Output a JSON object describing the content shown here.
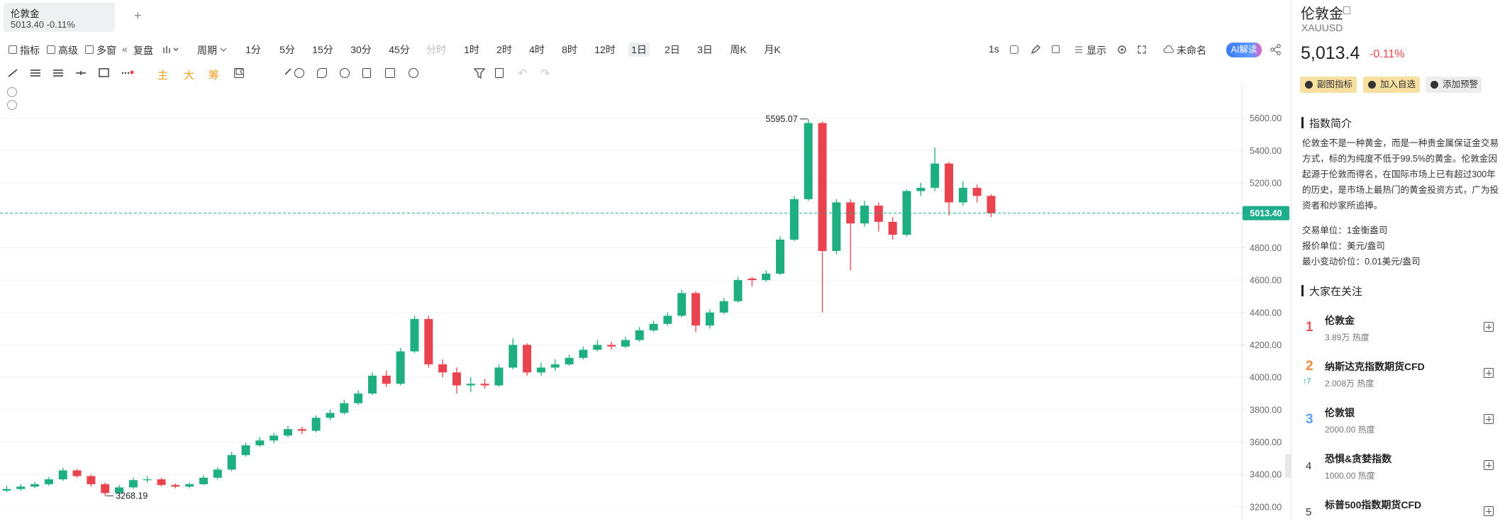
{
  "tab": {
    "title": "伦敦金",
    "price": "5013.40",
    "change": "-0.11%"
  },
  "toolbar": {
    "indicator": "指标",
    "advanced": "高级",
    "multi": "多窗",
    "replay": "复盘",
    "period": "周期",
    "periods": [
      "1分",
      "5分",
      "15分",
      "30分",
      "45分",
      "分时",
      "1时",
      "2时",
      "4时",
      "8时",
      "12时",
      "1日",
      "2日",
      "3日",
      "周K",
      "月K"
    ],
    "interval": "1s",
    "display": "显示",
    "layout": "未命名",
    "ai": "AI解读",
    "drawing": [
      "主",
      "大",
      "筹"
    ]
  },
  "chart_data": {
    "type": "candlestick",
    "up_color": "#1fae7f",
    "down_color": "#e8434f",
    "ylim": [
      3125,
      5800
    ],
    "yticks": [
      {
        "value": 3200,
        "label": "3200.00"
      },
      {
        "value": 3400,
        "label": "3400.00"
      },
      {
        "value": 3600,
        "label": "3600.00"
      },
      {
        "value": 3800,
        "label": "3800.00"
      },
      {
        "value": 4000,
        "label": "4000.00"
      },
      {
        "value": 4200,
        "label": "4200.00"
      },
      {
        "value": 4400,
        "label": "4400.00"
      },
      {
        "value": 4600,
        "label": "4600.00"
      },
      {
        "value": 4800,
        "label": "4800.00"
      },
      {
        "value": 5000,
        "label": "5000.00"
      },
      {
        "value": 5200,
        "label": "5200.00"
      },
      {
        "value": 5400,
        "label": "5400.00"
      },
      {
        "value": 5600,
        "label": "5600.00"
      }
    ],
    "grid": true,
    "open": [
      3300,
      3310,
      3325,
      3340,
      3370,
      3425,
      3390,
      3340,
      3285,
      3320,
      3365,
      3370,
      3335,
      3325,
      3340,
      3380,
      3430,
      3520,
      3580,
      3610,
      3640,
      3680,
      3670,
      3750,
      3780,
      3840,
      3900,
      4010,
      3960,
      4160,
      4360,
      4080,
      4030,
      3950,
      3960,
      3950,
      4060,
      4200,
      4030,
      4060,
      4080,
      4120,
      4170,
      4200,
      4190,
      4230,
      4290,
      4330,
      4380,
      4520,
      4320,
      4400,
      4470,
      4610,
      4600,
      4640,
      4850,
      5100,
      5570,
      4780,
      5080,
      4950,
      5060,
      4960,
      4880,
      5150,
      5170,
      5320,
      5080,
      5170,
      5120
    ],
    "high": [
      3330,
      3340,
      3355,
      3385,
      3440,
      3435,
      3400,
      3350,
      3335,
      3380,
      3390,
      3380,
      3345,
      3350,
      3395,
      3445,
      3540,
      3595,
      3630,
      3655,
      3700,
      3695,
      3765,
      3800,
      3860,
      3920,
      4030,
      4040,
      4180,
      4380,
      4380,
      4110,
      4060,
      4000,
      3990,
      4080,
      4240,
      4210,
      4090,
      4110,
      4140,
      4190,
      4230,
      4220,
      4250,
      4310,
      4350,
      4400,
      4540,
      4530,
      4420,
      4490,
      4620,
      4620,
      4660,
      4870,
      5120,
      5595.07,
      5580,
      5100,
      5100,
      5090,
      5080,
      4990,
      5160,
      5200,
      5420,
      5330,
      5210,
      5190,
      5130
    ],
    "low": [
      3290,
      3300,
      3315,
      3330,
      3360,
      3380,
      3325,
      3268.19,
      3280,
      3310,
      3350,
      3325,
      3315,
      3315,
      3335,
      3370,
      3420,
      3510,
      3570,
      3595,
      3630,
      3650,
      3660,
      3735,
      3770,
      3830,
      3890,
      3940,
      3950,
      4150,
      4060,
      4000,
      3900,
      3910,
      3930,
      3940,
      4050,
      4010,
      4010,
      4040,
      4070,
      4110,
      4160,
      4170,
      4180,
      4220,
      4280,
      4320,
      4370,
      4280,
      4300,
      4390,
      4460,
      4560,
      4590,
      4630,
      4840,
      5090,
      4400,
      4760,
      4660,
      4930,
      4900,
      4850,
      4870,
      5120,
      5150,
      5000,
      5060,
      5080,
      4990
    ],
    "close": [
      3310,
      3325,
      3340,
      3370,
      3425,
      3390,
      3340,
      3285,
      3320,
      3365,
      3370,
      3335,
      3325,
      3340,
      3380,
      3430,
      3520,
      3580,
      3610,
      3640,
      3680,
      3670,
      3750,
      3780,
      3840,
      3900,
      4010,
      3960,
      4160,
      4360,
      4080,
      4030,
      3950,
      3960,
      3950,
      4060,
      4200,
      4030,
      4060,
      4080,
      4120,
      4170,
      4200,
      4190,
      4230,
      4290,
      4330,
      4380,
      4520,
      4320,
      4400,
      4470,
      4600,
      4600,
      4640,
      4850,
      5100,
      5570,
      4780,
      5080,
      4950,
      5060,
      4960,
      4880,
      5150,
      5170,
      5320,
      5080,
      5170,
      5120,
      5013.4
    ],
    "price_line": {
      "value": 5013.4,
      "label": "5013.40"
    },
    "price_line_color": "#1fae8c"
  },
  "sidebar": {
    "name": "伦敦金",
    "code": "XAUUSD",
    "price": "5,013.4",
    "change": "-0.11%",
    "buttons": [
      "副图指标",
      "加入自选",
      "添加预警"
    ],
    "intro_title": "指数简介",
    "intro": "伦敦金不是一种黄金，而是一种贵金属保证金交易方式，标的为纯度不低于99.5%的黄金。伦敦金因起源于伦敦而得名，在国际市场上已有超过300年的历史，是市场上最热门的黄金投资方式，广为投资者和炒家所追捧。",
    "specs": [
      "交易单位：1金衡盎司",
      "报价单位：美元/盎司",
      "最小变动价位：0.01美元/盎司"
    ],
    "watch_title": "大家在关注",
    "watch": [
      {
        "rank": "1",
        "name": "伦敦金",
        "heat": "3.89万 热度"
      },
      {
        "rank": "2",
        "name": "纳斯达克指数期货CFD",
        "move": "↑7",
        "heat": "2.008万 热度"
      },
      {
        "rank": "3",
        "name": "伦敦银",
        "heat": "2000.00 热度"
      },
      {
        "rank": "4",
        "name": "恐惧&贪婪指数",
        "heat": "1000.00 热度"
      },
      {
        "rank": "5",
        "name": "标普500指数期货CFD"
      }
    ]
  }
}
